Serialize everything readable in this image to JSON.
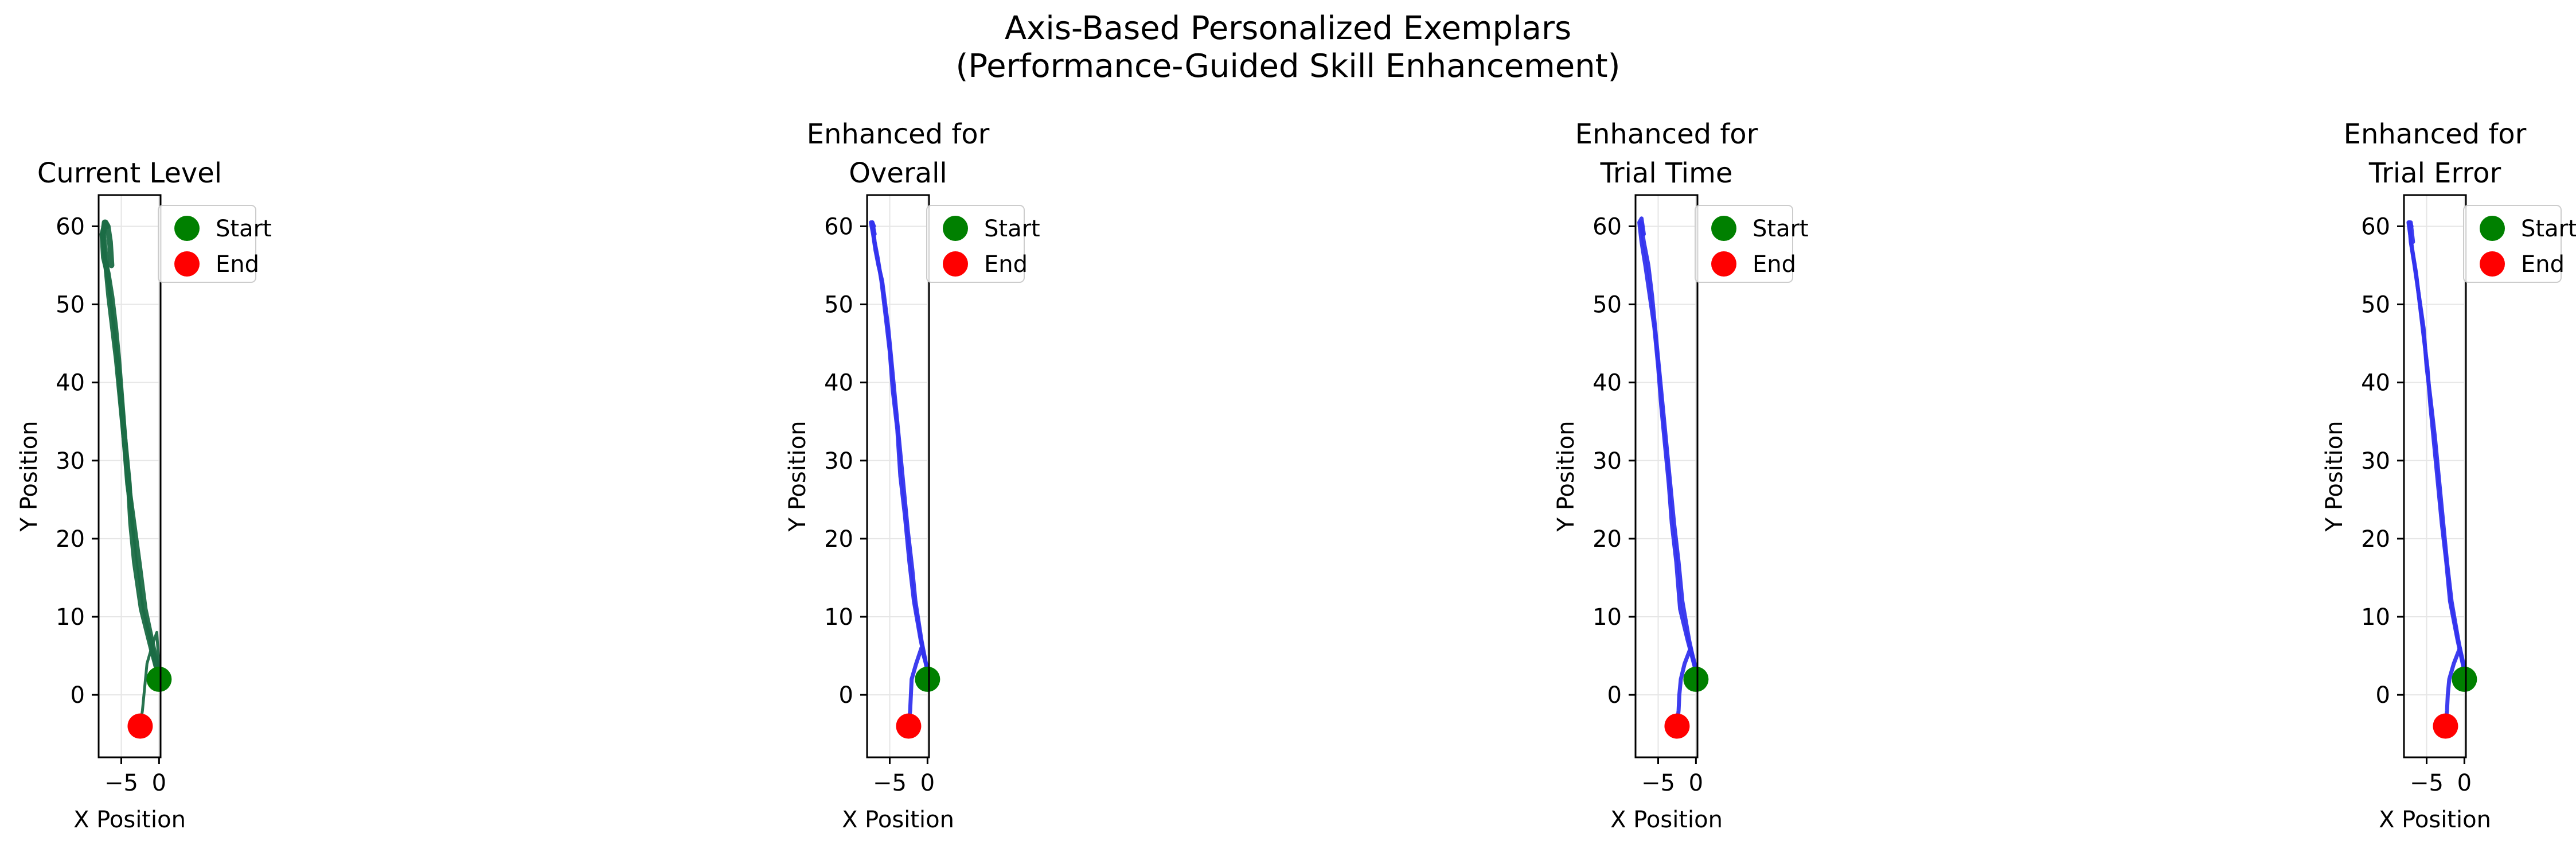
{
  "figure": {
    "title_line1": "Axis-Based Personalized Exemplars",
    "title_line2": "(Performance-Guided Skill Enhancement)"
  },
  "colors": {
    "current": "#1a6b45",
    "enhanced": "#3333ee",
    "start": "#008000",
    "end": "#ff0000",
    "grid": "#e6e6e6"
  },
  "chart_data": [
    {
      "type": "line",
      "title": [
        "Current Level"
      ],
      "xlabel": "X Position",
      "ylabel": "Y Position",
      "xlim": [
        -8,
        0.2
      ],
      "ylim": [
        -8,
        64
      ],
      "xticks": [
        -5,
        0
      ],
      "yticks": [
        0,
        10,
        20,
        30,
        40,
        50,
        60
      ],
      "grid": true,
      "legend": {
        "location": "upper-right",
        "entries": [
          "Start",
          "End"
        ]
      },
      "series": [
        {
          "x": [
            0.1,
            -1.0,
            -2.3,
            -3.2,
            -3.7,
            -4.0,
            -4.6,
            -5.0,
            -5.4,
            -5.8,
            -6.3,
            -6.8,
            -7.3,
            -7.5,
            -7.1,
            -6.8,
            -6.5,
            -6.3
          ],
          "y": [
            2,
            6,
            11,
            17,
            22,
            27,
            33,
            38,
            43,
            47,
            51,
            54,
            56,
            59,
            60.5,
            60,
            58,
            55
          ],
          "style": "thick"
        },
        {
          "x": [
            0.1,
            -0.8,
            -1.9,
            -2.7,
            -3.4,
            -4.1,
            -4.6,
            -5.1,
            -5.6,
            -6.1,
            -6.6,
            -7.0,
            -7.4,
            -7.2,
            -6.9
          ],
          "y": [
            2,
            6,
            11,
            17,
            22,
            27,
            33,
            38,
            43,
            47,
            51,
            55,
            59,
            60.5,
            60
          ],
          "style": "thick"
        },
        {
          "x": [
            -2.5,
            -2.2,
            -2.0,
            -1.8,
            -1.6,
            -1.0,
            -0.3,
            0.1
          ],
          "y": [
            -4,
            -2,
            0,
            2,
            4,
            6,
            8,
            2
          ],
          "style": "thin"
        }
      ],
      "start": {
        "x": 0,
        "y": 2
      },
      "end": {
        "x": -2.5,
        "y": -4
      }
    },
    {
      "type": "line",
      "title": [
        "Enhanced for",
        "Overall"
      ],
      "xlabel": "X Position",
      "ylabel": "Y Position",
      "xlim": [
        -8,
        0.2
      ],
      "ylim": [
        -8,
        64
      ],
      "xticks": [
        -5,
        0
      ],
      "yticks": [
        0,
        10,
        20,
        30,
        40,
        50,
        60
      ],
      "grid": true,
      "legend": {
        "location": "upper-right",
        "entries": [
          "Start",
          "End"
        ]
      },
      "series": [
        {
          "x": [
            0,
            -0.8,
            -1.6,
            -2.0,
            -2.6,
            -3.2,
            -3.8,
            -4.2,
            -4.7,
            -5.2,
            -5.6,
            -6.0,
            -6.5,
            -6.9,
            -7.2,
            -7.5,
            -7.3,
            -7.0
          ],
          "y": [
            3,
            7,
            12,
            16,
            21,
            27,
            33,
            37,
            42,
            47,
            50,
            53,
            55,
            57,
            59,
            60.5,
            60.5,
            59
          ]
        },
        {
          "x": [
            0,
            -0.9,
            -1.8,
            -2.4,
            -3.0,
            -3.6,
            -4.0,
            -4.6,
            -5.0,
            -5.6,
            -6.1,
            -6.6,
            -7.0,
            -7.3,
            -7.1
          ],
          "y": [
            3,
            7,
            12,
            17,
            23,
            28,
            34,
            39,
            44,
            49,
            53,
            56,
            58,
            60.5,
            60
          ]
        },
        {
          "x": [
            -2.5,
            -2.3,
            -2.2,
            -2.1,
            -1.5,
            -0.8,
            0.1
          ],
          "y": [
            -4,
            -2,
            0,
            2,
            4,
            6,
            3
          ]
        }
      ],
      "start": {
        "x": 0,
        "y": 2
      },
      "end": {
        "x": -2.5,
        "y": -4
      }
    },
    {
      "type": "line",
      "title": [
        "Enhanced for",
        "Trial Time"
      ],
      "xlabel": "X Position",
      "ylabel": "Y Position",
      "xlim": [
        -8,
        0.2
      ],
      "ylim": [
        -8,
        64
      ],
      "xticks": [
        -5,
        0
      ],
      "yticks": [
        0,
        10,
        20,
        30,
        40,
        50,
        60
      ],
      "grid": true,
      "legend": {
        "location": "upper-right",
        "entries": [
          "Start",
          "End"
        ]
      },
      "series": [
        {
          "x": [
            0,
            -1.1,
            -2.1,
            -2.6,
            -3.2,
            -3.6,
            -4.1,
            -4.6,
            -5.0,
            -5.5,
            -6.1,
            -6.7,
            -7.2,
            -7.5,
            -7.2,
            -6.9
          ],
          "y": [
            3,
            7,
            11,
            17,
            22,
            27,
            32,
            37,
            42,
            47,
            51,
            55,
            58,
            60.5,
            61,
            59
          ]
        },
        {
          "x": [
            0,
            -0.9,
            -1.8,
            -2.3,
            -2.9,
            -3.4,
            -3.9,
            -4.4,
            -4.9,
            -5.4,
            -5.8,
            -6.3,
            -6.9,
            -7.3,
            -7.1
          ],
          "y": [
            3,
            7,
            12,
            17,
            22,
            27,
            32,
            37,
            42,
            47,
            51,
            55,
            58,
            60.5,
            60
          ]
        },
        {
          "x": [
            -2.5,
            -2.3,
            -2.2,
            -2.0,
            -1.5,
            -0.7,
            0.1
          ],
          "y": [
            -4,
            -2,
            0,
            2,
            4,
            6,
            3
          ]
        }
      ],
      "start": {
        "x": 0,
        "y": 2
      },
      "end": {
        "x": -2.5,
        "y": -4
      }
    },
    {
      "type": "line",
      "title": [
        "Enhanced for",
        "Trial Error"
      ],
      "xlabel": "X Position",
      "ylabel": "Y Position",
      "xlim": [
        -8,
        0.2
      ],
      "ylim": [
        -8,
        64
      ],
      "xticks": [
        -5,
        0
      ],
      "yticks": [
        0,
        10,
        20,
        30,
        40,
        50,
        60
      ],
      "grid": true,
      "legend": {
        "location": "upper-right",
        "entries": [
          "Start",
          "End"
        ]
      },
      "series": [
        {
          "x": [
            0,
            -0.9,
            -1.9,
            -2.4,
            -3.0,
            -3.5,
            -4.0,
            -4.5,
            -4.9,
            -5.4,
            -5.9,
            -6.4,
            -6.9,
            -7.4,
            -7.1,
            -6.8
          ],
          "y": [
            3,
            7,
            12,
            17,
            22,
            27,
            32,
            37,
            42,
            46,
            50,
            54,
            57,
            60.5,
            60.5,
            58
          ]
        },
        {
          "x": [
            0,
            -0.8,
            -1.7,
            -2.3,
            -2.8,
            -3.3,
            -3.9,
            -4.5,
            -5.0,
            -5.4,
            -6.0,
            -6.6,
            -7.1,
            -7.3,
            -7.0
          ],
          "y": [
            3,
            7,
            12,
            17,
            22,
            27,
            33,
            38,
            42,
            47,
            51,
            55,
            58,
            60.5,
            60
          ]
        },
        {
          "x": [
            -2.5,
            -2.3,
            -2.2,
            -2.0,
            -1.4,
            -0.6,
            0.1
          ],
          "y": [
            -4,
            -2,
            0,
            2,
            4,
            6,
            3
          ]
        }
      ],
      "start": {
        "x": 0,
        "y": 2
      },
      "end": {
        "x": -2.5,
        "y": -4
      }
    }
  ]
}
